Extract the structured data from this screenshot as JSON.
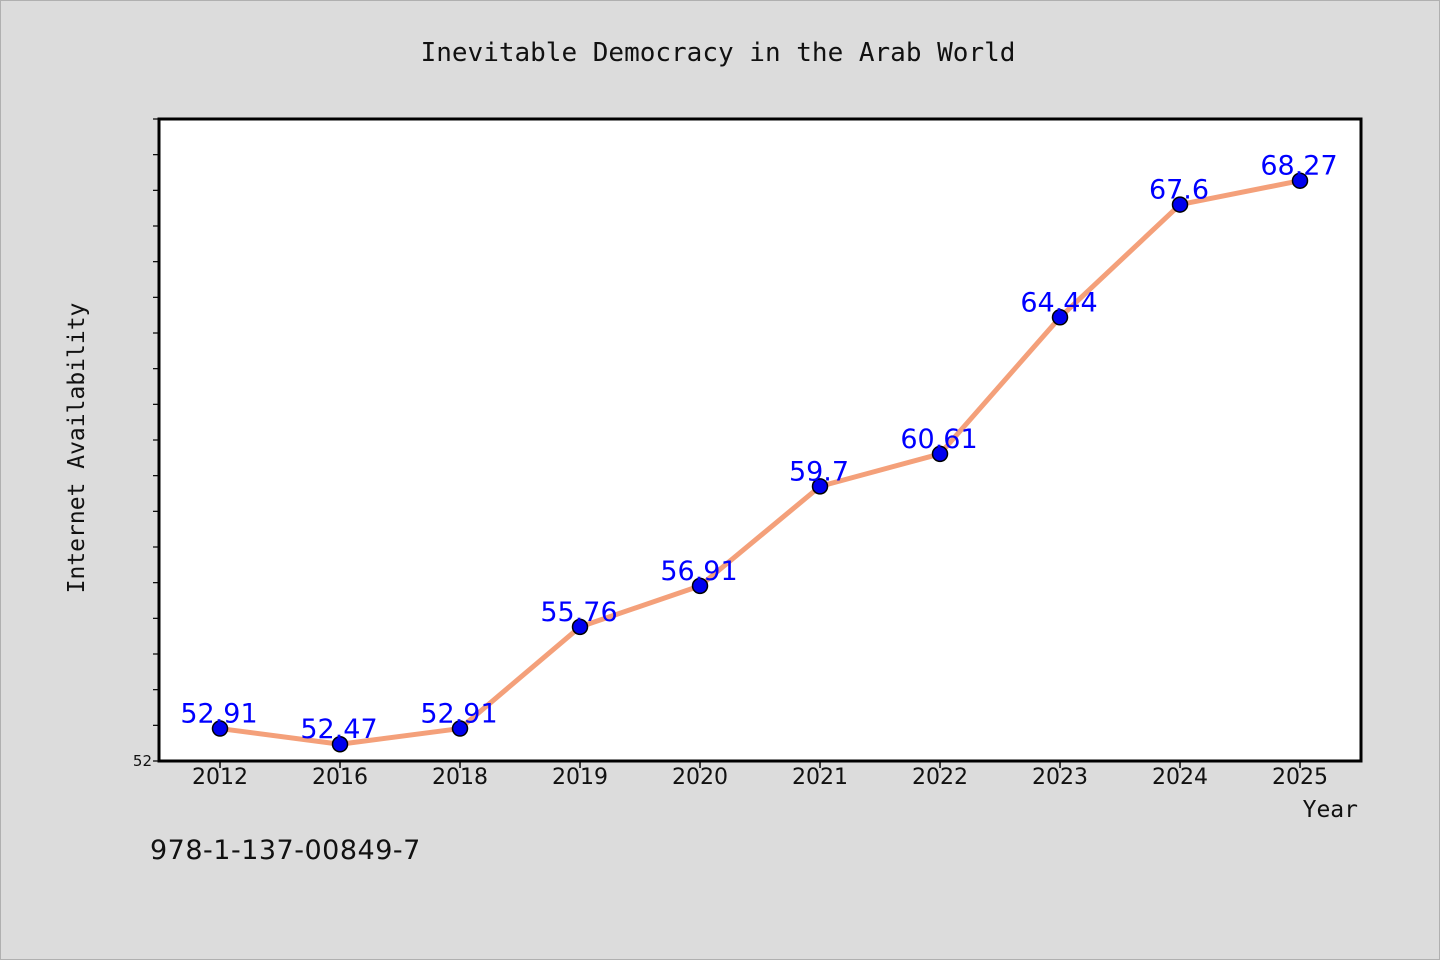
{
  "chart_data": {
    "type": "line",
    "title": "Inevitable Democracy in the Arab World",
    "xlabel": "Year",
    "ylabel": "Internet Availability",
    "categories": [
      "2012",
      "2016",
      "2018",
      "2019",
      "2020",
      "2021",
      "2022",
      "2023",
      "2024",
      "2025"
    ],
    "series": [
      {
        "values": [
          52.91,
          52.47,
          52.91,
          55.76,
          56.91,
          59.7,
          60.61,
          64.44,
          67.6,
          68.27
        ]
      }
    ],
    "data_labels": [
      "52.91",
      "52.47",
      "52.91",
      "55.76",
      "56.91",
      "59.7",
      "60.61",
      "64.44",
      "67.6",
      "68.27"
    ],
    "ylim": [
      52,
      70
    ],
    "ytick_label": "52",
    "grid": false,
    "colors": {
      "line": "#f4a07a",
      "marker": "#0000ee",
      "label": "#0000ff",
      "axes_bg": "#ffffff",
      "figure_bg": "#dcdcdc"
    }
  },
  "footer": {
    "isbn": "978-1-137-00849-7"
  }
}
